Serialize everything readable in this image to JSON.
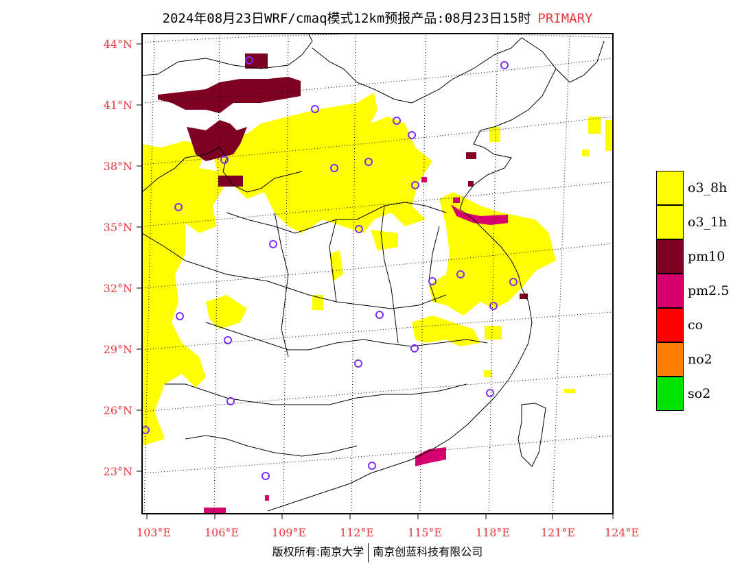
{
  "header": {
    "title": "2024年08月23日WRF/cmaq模式12km预报产品:08月23日15时",
    "tag": "PRIMARY"
  },
  "map": {
    "lat_labels": [
      "44°N",
      "41°N",
      "38°N",
      "35°N",
      "32°N",
      "29°N",
      "26°N",
      "23°N"
    ],
    "lon_labels": [
      "103°E",
      "106°E",
      "109°E",
      "112°E",
      "115°E",
      "118°E",
      "121°E",
      "124°E"
    ],
    "label_color": "#e8383d",
    "station_marker_color": "#7b2ff7"
  },
  "legend": {
    "items": [
      {
        "label": "o3_8h",
        "color": "#ffff00"
      },
      {
        "label": "o3_1h",
        "color": "#ffff00"
      },
      {
        "label": "pm10",
        "color": "#7e0023"
      },
      {
        "label": "pm2.5",
        "color": "#d6006f"
      },
      {
        "label": "co",
        "color": "#ff0000"
      },
      {
        "label": "no2",
        "color": "#ff7e00"
      },
      {
        "label": "so2",
        "color": "#00e400"
      }
    ]
  },
  "footer": {
    "left": "版权所有:南京大学",
    "right": "南京创蓝科技有限公司"
  }
}
